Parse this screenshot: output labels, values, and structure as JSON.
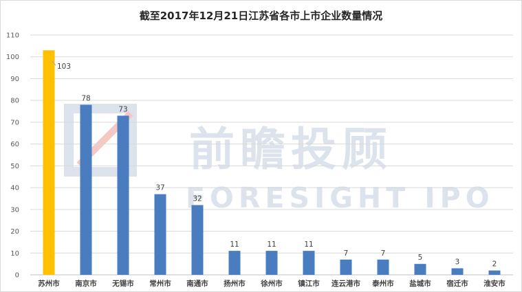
{
  "chart_data": {
    "type": "bar",
    "title": "截至2017年12月21日江苏省各市上市企业数量情况",
    "xlabel": "",
    "ylabel": "",
    "ylim": [
      0,
      110
    ],
    "yticks": [
      0,
      10,
      20,
      30,
      40,
      50,
      60,
      70,
      80,
      90,
      100,
      110
    ],
    "grid": true,
    "categories": [
      "苏州市",
      "南京市",
      "无锡市",
      "常州市",
      "南通市",
      "扬州市",
      "徐州市",
      "镇江市",
      "连云港市",
      "泰州市",
      "盐城市",
      "宿迁市",
      "淮安市"
    ],
    "values": [
      103,
      78,
      73,
      37,
      32,
      11,
      11,
      11,
      7,
      7,
      5,
      3,
      2
    ],
    "colors": {
      "highlight": "#ffc000",
      "bar": "#4a7dc0",
      "grid": "#d9d9d9",
      "axis": "#bfbfbf"
    },
    "highlight_index": 0
  },
  "watermark": {
    "chinese": "前瞻投顾",
    "english": "FORESIGHT IPO"
  }
}
